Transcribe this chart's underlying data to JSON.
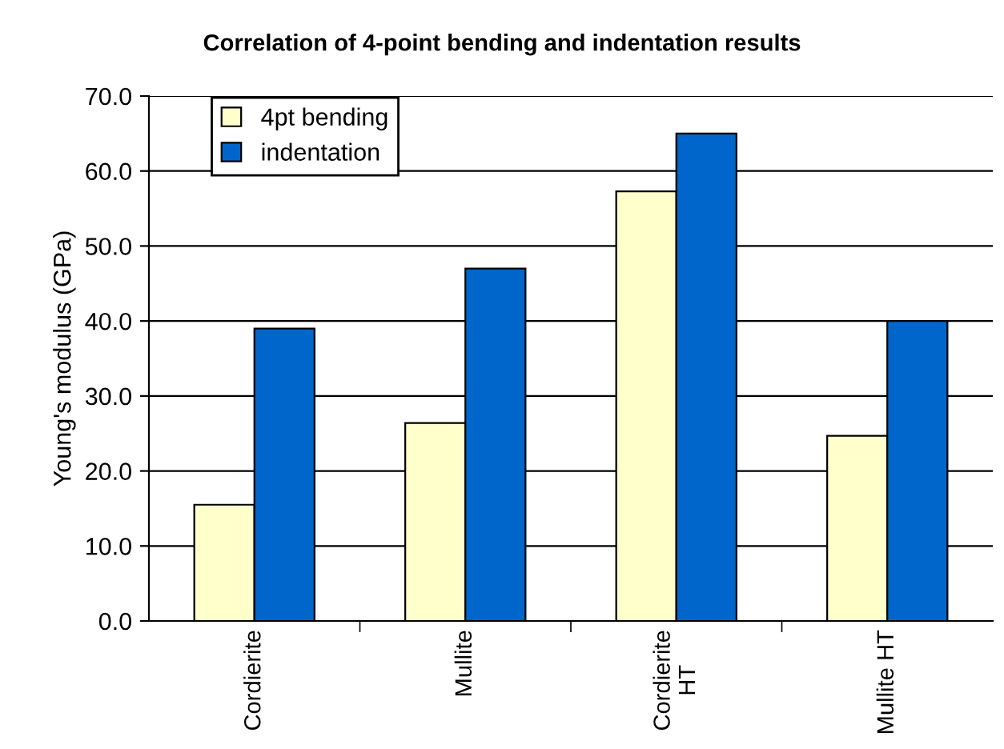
{
  "chart_data": {
    "type": "bar",
    "title": "Correlation of 4-point bending and indentation results",
    "ylabel": "Young's modulus (GPa)",
    "categories": [
      "Cordierite",
      "Mullite",
      "Cordierite\nHT",
      "Mullite HT"
    ],
    "series": [
      {
        "name": "4pt bending",
        "color": "#ffffcc",
        "values": [
          15.5,
          26.4,
          57.3,
          24.7
        ]
      },
      {
        "name": "indentation",
        "color": "#0066cc",
        "values": [
          39.0,
          47.0,
          65.0,
          40.0
        ]
      }
    ],
    "ylim": [
      0,
      70
    ],
    "yticks": [
      {
        "value": 0,
        "label": "0.0"
      },
      {
        "value": 10,
        "label": "10.0"
      },
      {
        "value": 20,
        "label": "20.0"
      },
      {
        "value": 30,
        "label": "30.0"
      },
      {
        "value": 40,
        "label": "40.0"
      },
      {
        "value": 50,
        "label": "50.0"
      },
      {
        "value": 60,
        "label": "60.0"
      },
      {
        "value": 70,
        "label": "70.0"
      }
    ],
    "grid": "y",
    "legend": "top left"
  }
}
